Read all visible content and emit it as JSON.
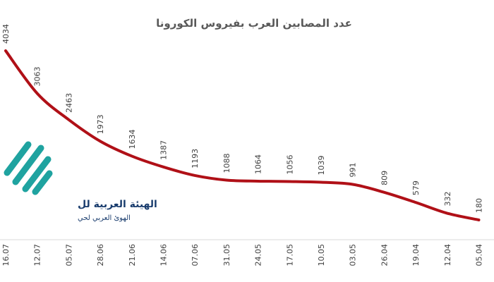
{
  "chart_data": {
    "type": "line",
    "title": "عدد المصابين العرب بفيروس الكورونا",
    "categories": [
      "16.07",
      "12.07",
      "05.07",
      "28.06",
      "21.06",
      "14.06",
      "07.06",
      "31.05",
      "24.05",
      "17.05",
      "10.05",
      "03.05",
      "26.04",
      "19.04",
      "12.04",
      "05.04"
    ],
    "values": [
      4034,
      3063,
      2463,
      1973,
      1634,
      1387,
      1193,
      1088,
      1064,
      1056,
      1039,
      991,
      809,
      579,
      332,
      180
    ],
    "color": "#b01017"
  },
  "watermark": {
    "title": "الهيئة العربية لل",
    "subtitle": "الهوئ العربي لحي"
  }
}
